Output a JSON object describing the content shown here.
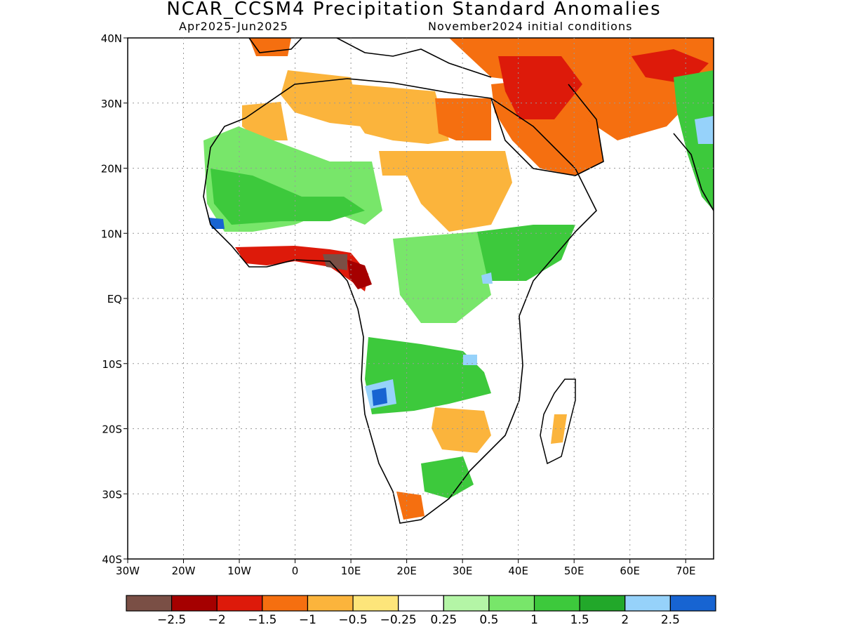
{
  "title": "NCAR_CCSM4 Precipitation Standard Anomalies",
  "subtitle_left": "Apr2025-Jun2025",
  "subtitle_right": "November2024 initial conditions",
  "lon_labels": [
    "30W",
    "20W",
    "10W",
    "0",
    "10E",
    "20E",
    "30E",
    "40E",
    "50E",
    "60E",
    "70E"
  ],
  "lat_labels": [
    "40N",
    "30N",
    "20N",
    "10N",
    "EQ",
    "10S",
    "20S",
    "30S",
    "40S"
  ],
  "colorbar": {
    "labels": [
      "−2.5",
      "−2",
      "−1.5",
      "−1",
      "−0.5",
      "−0.25",
      "0.25",
      "0.5",
      "1",
      "1.5",
      "2",
      "2.5"
    ],
    "colors": [
      "#7a4f45",
      "#a50000",
      "#dd1a0a",
      "#f56f10",
      "#fbb43c",
      "#fde57a",
      "#ffffff",
      "#b4f5a6",
      "#78e66a",
      "#3dc93c",
      "#22a82a",
      "#96d2fa",
      "#1764d2"
    ]
  },
  "legend_colors": {
    "dry_strong": "#a50000",
    "dry": "#f56f10",
    "dry_weak": "#fbb43c",
    "wet_weak": "#b4f5a6",
    "wet": "#3dc93c",
    "very_wet": "#1764d2"
  }
}
